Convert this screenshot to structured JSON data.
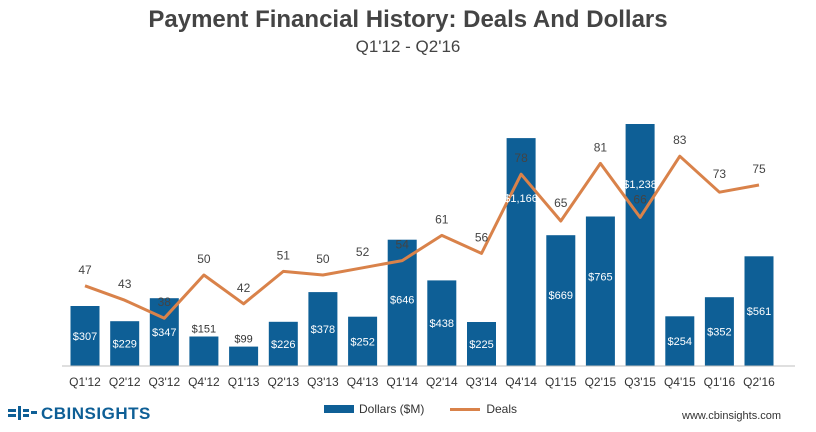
{
  "chart_data": {
    "type": "bar",
    "title": "Payment Financial History: Deals And Dollars",
    "subtitle": "Q1'12 - Q2'16",
    "categories": [
      "Q1'12",
      "Q2'12",
      "Q3'12",
      "Q4'12",
      "Q1'13",
      "Q2'13",
      "Q3'13",
      "Q4'13",
      "Q1'14",
      "Q2'14",
      "Q3'14",
      "Q4'14",
      "Q1'15",
      "Q2'15",
      "Q3'15",
      "Q4'15",
      "Q1'16",
      "Q2'16"
    ],
    "series": [
      {
        "name": "Dollars ($M)",
        "kind": "bar",
        "values": [
          307,
          229,
          347,
          151,
          99,
          226,
          378,
          252,
          646,
          438,
          225,
          1166,
          669,
          765,
          1238,
          254,
          352,
          561
        ],
        "labels": [
          "$307",
          "$229",
          "$347",
          "$151",
          "$99",
          "$226",
          "$378",
          "$252",
          "$646",
          "$438",
          "$225",
          "$1,166",
          "$669",
          "$765",
          "$1,238",
          "$254",
          "$352",
          "$561"
        ]
      },
      {
        "name": "Deals",
        "kind": "line",
        "values": [
          47,
          43,
          38,
          50,
          42,
          51,
          50,
          52,
          54,
          61,
          56,
          78,
          65,
          81,
          66,
          83,
          73,
          75
        ]
      }
    ],
    "legend_position": "bottom-center",
    "grid": false
  },
  "colors": {
    "bars": "#0e5f96",
    "line": "#d9824a"
  },
  "footer": {
    "logo_text": "CBINSIGHTS",
    "website": "www.cbinsights.com"
  }
}
